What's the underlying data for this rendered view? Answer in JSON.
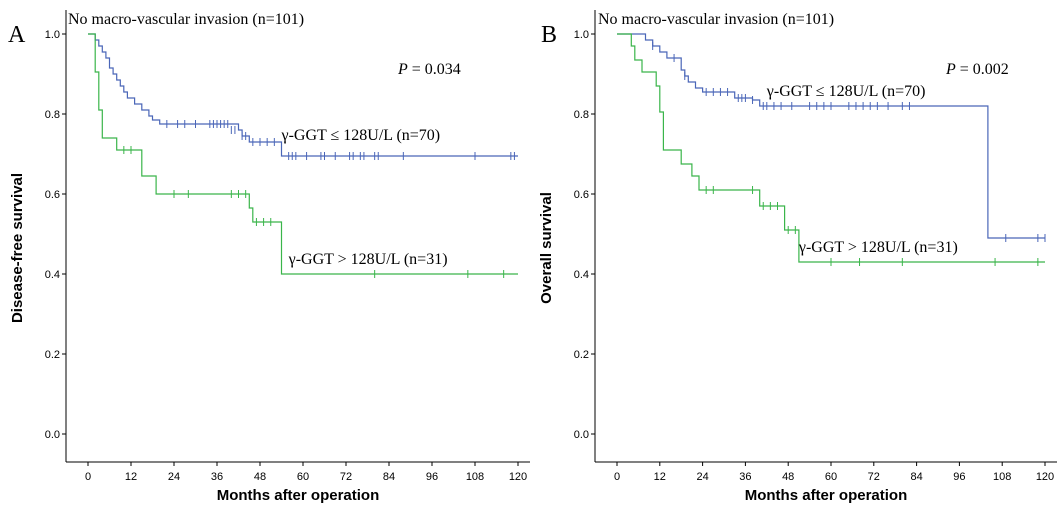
{
  "chart_data": [
    {
      "type": "line",
      "panel_label": "A",
      "title": "No macro-vascular invasion (n=101)",
      "p_label": "P",
      "p_value": "= 0.034",
      "xlabel": "Months after operation",
      "ylabel": "Disease-free survival",
      "xlim": [
        0,
        120
      ],
      "ylim": [
        0,
        1
      ],
      "xticks": [
        "0",
        "12",
        "24",
        "36",
        "48",
        "60",
        "72",
        "84",
        "96",
        "108",
        "120"
      ],
      "yticks": [
        "0.0",
        "0.2",
        "0.4",
        "0.6",
        "0.8",
        "1.0"
      ],
      "series": [
        {
          "name": "γ-GGT ≤ 128U/L (n=70)",
          "color": "#4a66b8",
          "steps": [
            [
              0,
              1.0
            ],
            [
              2,
              0.985
            ],
            [
              3,
              0.97
            ],
            [
              4,
              0.955
            ],
            [
              5,
              0.94
            ],
            [
              6,
              0.915
            ],
            [
              7,
              0.9
            ],
            [
              8,
              0.885
            ],
            [
              9,
              0.87
            ],
            [
              10,
              0.855
            ],
            [
              11,
              0.84
            ],
            [
              13,
              0.825
            ],
            [
              15,
              0.81
            ],
            [
              17,
              0.795
            ],
            [
              18,
              0.785
            ],
            [
              20,
              0.775
            ],
            [
              42,
              0.76
            ],
            [
              43,
              0.745
            ],
            [
              45,
              0.73
            ],
            [
              54,
              0.695
            ],
            [
              120,
              0.695
            ]
          ],
          "censored": [
            [
              22,
              0.775
            ],
            [
              25,
              0.775
            ],
            [
              27,
              0.775
            ],
            [
              30,
              0.775
            ],
            [
              34,
              0.775
            ],
            [
              35,
              0.775
            ],
            [
              36,
              0.775
            ],
            [
              37,
              0.775
            ],
            [
              38,
              0.775
            ],
            [
              39,
              0.775
            ],
            [
              40,
              0.76
            ],
            [
              41,
              0.76
            ],
            [
              43,
              0.745
            ],
            [
              44,
              0.745
            ],
            [
              46,
              0.73
            ],
            [
              48,
              0.73
            ],
            [
              50,
              0.73
            ],
            [
              52,
              0.73
            ],
            [
              56,
              0.695
            ],
            [
              57,
              0.695
            ],
            [
              58,
              0.695
            ],
            [
              61,
              0.695
            ],
            [
              65,
              0.695
            ],
            [
              66,
              0.695
            ],
            [
              69,
              0.695
            ],
            [
              73,
              0.695
            ],
            [
              74,
              0.695
            ],
            [
              76,
              0.695
            ],
            [
              77,
              0.695
            ],
            [
              80,
              0.695
            ],
            [
              81,
              0.695
            ],
            [
              88,
              0.695
            ],
            [
              108,
              0.695
            ],
            [
              118,
              0.695
            ],
            [
              119,
              0.695
            ]
          ],
          "label_x": 54,
          "label_y": 0.735
        },
        {
          "name": "γ-GGT > 128U/L (n=31)",
          "color": "#3ab54a",
          "steps": [
            [
              0,
              1.0
            ],
            [
              2,
              0.905
            ],
            [
              3,
              0.81
            ],
            [
              4,
              0.74
            ],
            [
              8,
              0.71
            ],
            [
              15,
              0.645
            ],
            [
              19,
              0.6
            ],
            [
              45,
              0.565
            ],
            [
              46,
              0.53
            ],
            [
              54,
              0.4
            ],
            [
              120,
              0.4
            ]
          ],
          "censored": [
            [
              10,
              0.71
            ],
            [
              12,
              0.71
            ],
            [
              24,
              0.6
            ],
            [
              28,
              0.6
            ],
            [
              40,
              0.6
            ],
            [
              42,
              0.6
            ],
            [
              44,
              0.6
            ],
            [
              47,
              0.53
            ],
            [
              49,
              0.53
            ],
            [
              51,
              0.53
            ],
            [
              80,
              0.4
            ],
            [
              106,
              0.4
            ],
            [
              116,
              0.4
            ]
          ],
          "label_x": 56,
          "label_y": 0.425
        }
      ],
      "grid": false,
      "legend": "none"
    },
    {
      "type": "line",
      "panel_label": "B",
      "title": "No macro-vascular invasion (n=101)",
      "p_label": "P",
      "p_value": "= 0.002",
      "xlabel": "Months after operation",
      "ylabel": "Overall survival",
      "xlim": [
        0,
        120
      ],
      "ylim": [
        0,
        1
      ],
      "xticks": [
        "0",
        "12",
        "24",
        "36",
        "48",
        "60",
        "72",
        "84",
        "96",
        "108",
        "120"
      ],
      "yticks": [
        "0.0",
        "0.2",
        "0.4",
        "0.6",
        "0.8",
        "1.0"
      ],
      "series": [
        {
          "name": "γ-GGT ≤ 128U/L (n=70)",
          "color": "#4a66b8",
          "steps": [
            [
              0,
              1.0
            ],
            [
              8,
              0.985
            ],
            [
              10,
              0.97
            ],
            [
              12,
              0.955
            ],
            [
              14,
              0.94
            ],
            [
              18,
              0.91
            ],
            [
              19,
              0.895
            ],
            [
              20,
              0.88
            ],
            [
              22,
              0.865
            ],
            [
              24,
              0.855
            ],
            [
              33,
              0.84
            ],
            [
              38,
              0.835
            ],
            [
              40,
              0.82
            ],
            [
              104,
              0.49
            ],
            [
              120,
              0.49
            ]
          ],
          "censored": [
            [
              10,
              0.97
            ],
            [
              16,
              0.94
            ],
            [
              19,
              0.895
            ],
            [
              25,
              0.855
            ],
            [
              27,
              0.855
            ],
            [
              29,
              0.855
            ],
            [
              31,
              0.855
            ],
            [
              34,
              0.84
            ],
            [
              35,
              0.84
            ],
            [
              36,
              0.84
            ],
            [
              38,
              0.835
            ],
            [
              41,
              0.82
            ],
            [
              42,
              0.82
            ],
            [
              44,
              0.82
            ],
            [
              46,
              0.82
            ],
            [
              49,
              0.82
            ],
            [
              54,
              0.82
            ],
            [
              56,
              0.82
            ],
            [
              58,
              0.82
            ],
            [
              60,
              0.82
            ],
            [
              65,
              0.82
            ],
            [
              67,
              0.82
            ],
            [
              69,
              0.82
            ],
            [
              71,
              0.82
            ],
            [
              73,
              0.82
            ],
            [
              76,
              0.82
            ],
            [
              80,
              0.82
            ],
            [
              82,
              0.82
            ],
            [
              109,
              0.49
            ],
            [
              118,
              0.49
            ],
            [
              120,
              0.49
            ]
          ],
          "label_x": 42,
          "label_y": 0.845
        },
        {
          "name": "γ-GGT > 128U/L (n=31)",
          "color": "#3ab54a",
          "steps": [
            [
              0,
              1.0
            ],
            [
              4,
              0.97
            ],
            [
              5,
              0.935
            ],
            [
              7,
              0.905
            ],
            [
              11,
              0.87
            ],
            [
              12,
              0.805
            ],
            [
              13,
              0.71
            ],
            [
              18,
              0.675
            ],
            [
              21,
              0.645
            ],
            [
              23,
              0.61
            ],
            [
              40,
              0.57
            ],
            [
              47,
              0.51
            ],
            [
              51,
              0.43
            ],
            [
              120,
              0.43
            ]
          ],
          "censored": [
            [
              25,
              0.61
            ],
            [
              27,
              0.61
            ],
            [
              38,
              0.61
            ],
            [
              41,
              0.57
            ],
            [
              43,
              0.57
            ],
            [
              45,
              0.57
            ],
            [
              48,
              0.51
            ],
            [
              50,
              0.51
            ],
            [
              60,
              0.43
            ],
            [
              68,
              0.43
            ],
            [
              80,
              0.43
            ],
            [
              106,
              0.43
            ],
            [
              118,
              0.43
            ]
          ],
          "label_x": 51,
          "label_y": 0.455
        }
      ],
      "grid": false,
      "legend": "none"
    }
  ]
}
